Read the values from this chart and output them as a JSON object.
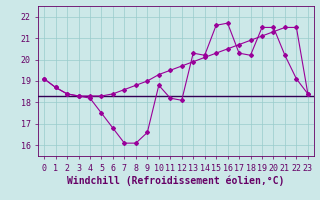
{
  "xlabel": "Windchill (Refroidissement éolien,°C)",
  "x_values": [
    0,
    1,
    2,
    3,
    4,
    5,
    6,
    7,
    8,
    9,
    10,
    11,
    12,
    13,
    14,
    15,
    16,
    17,
    18,
    19,
    20,
    21,
    22,
    23
  ],
  "line1_y": [
    19.1,
    18.7,
    18.4,
    18.3,
    18.2,
    17.5,
    16.8,
    16.1,
    16.1,
    16.6,
    18.8,
    18.2,
    18.1,
    20.3,
    20.2,
    21.6,
    21.7,
    20.3,
    20.2,
    21.5,
    21.5,
    20.2,
    19.1,
    18.4
  ],
  "line2_y": [
    19.1,
    18.7,
    18.4,
    18.3,
    18.3,
    18.3,
    18.4,
    18.6,
    18.8,
    19.0,
    19.3,
    19.5,
    19.7,
    19.9,
    20.1,
    20.3,
    20.5,
    20.7,
    20.9,
    21.1,
    21.3,
    21.5,
    21.5,
    18.4
  ],
  "hline_y": 18.3,
  "ylim_min": 15.5,
  "ylim_max": 22.5,
  "xlim_min": -0.5,
  "xlim_max": 23.5,
  "line_color": "#990099",
  "hline_color": "#330055",
  "bg_color": "#cce8e8",
  "grid_color": "#99cccc",
  "text_color": "#660066",
  "tick_fontsize": 6,
  "label_fontsize": 7
}
